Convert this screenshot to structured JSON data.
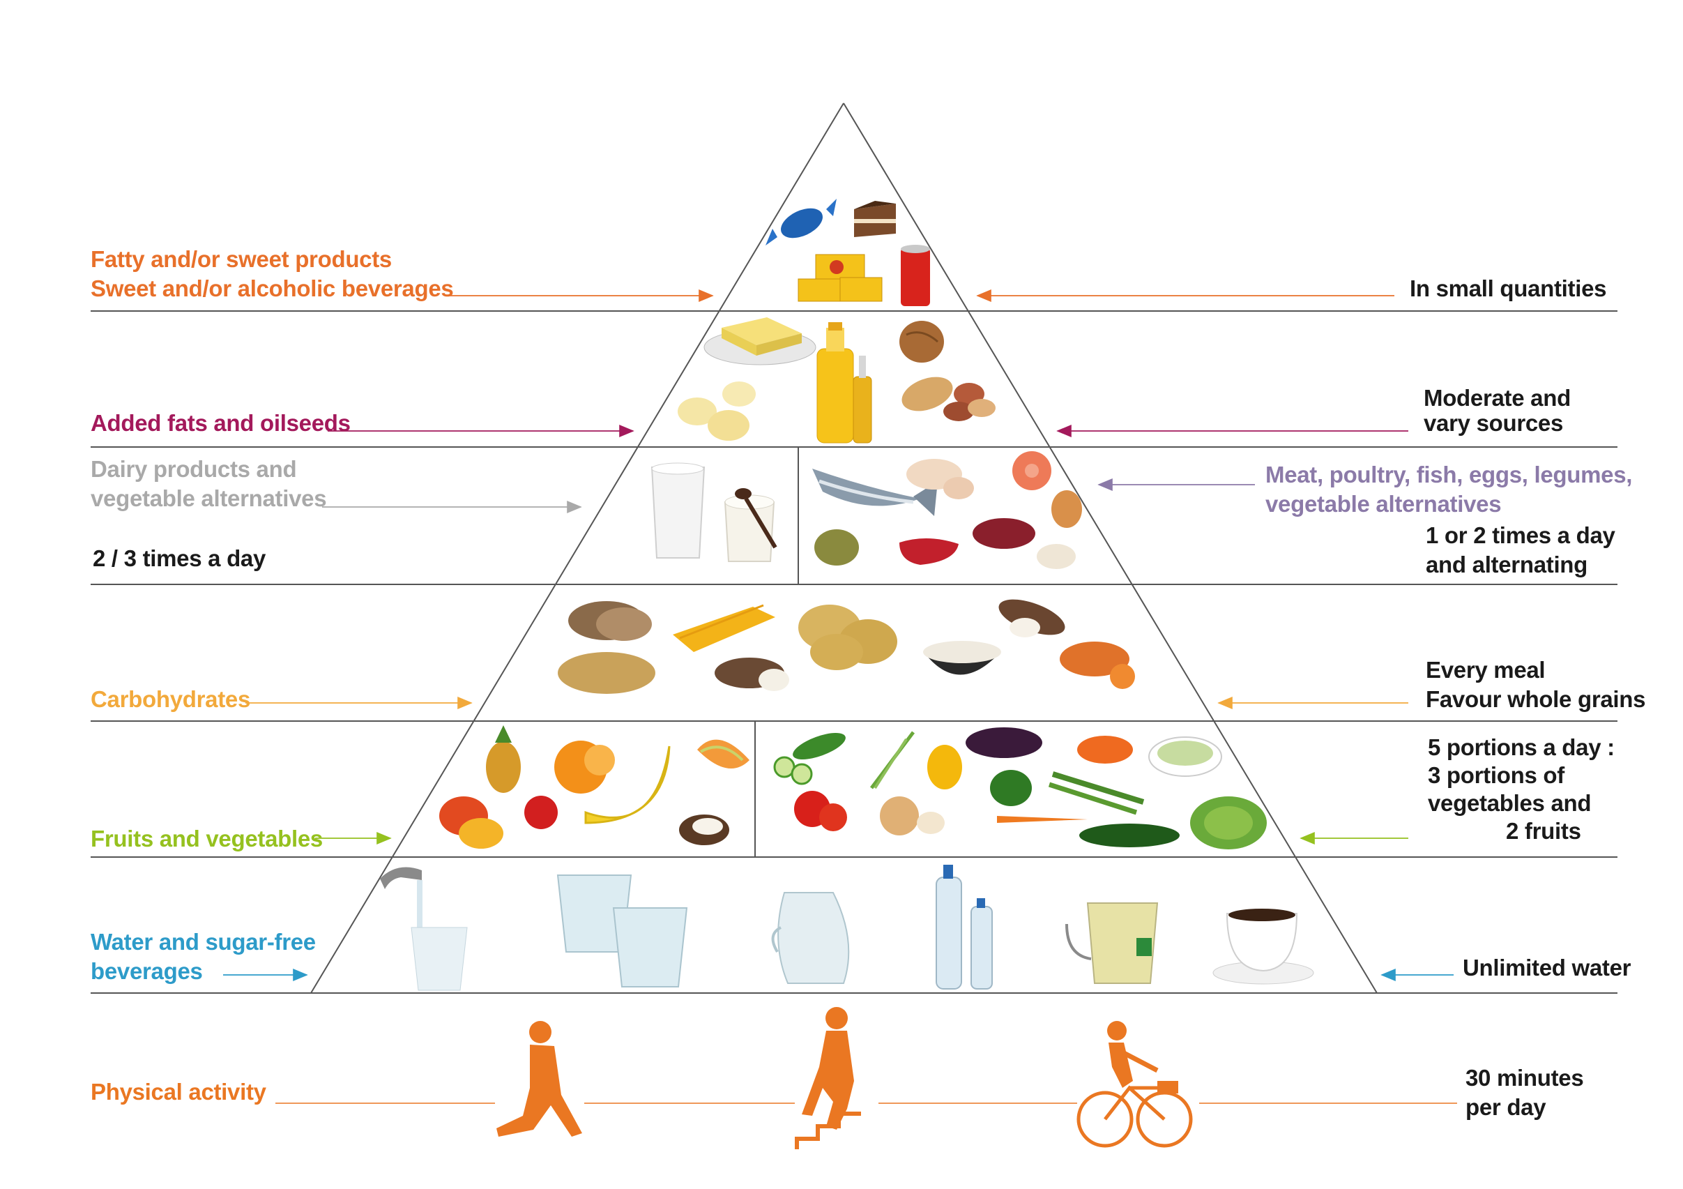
{
  "colors": {
    "orange": "#e8702a",
    "magenta": "#a3195b",
    "grey": "#a9a9a9",
    "purple": "#8b7aa8",
    "yellow": "#f2a93b",
    "green": "#95c11f",
    "blue": "#2d9bc9",
    "activity": "#ea7722",
    "line": "#555555"
  },
  "tiers": [
    {
      "left_lines": [
        "Fatty and/or sweet products",
        "Sweet and/or alcoholic beverages"
      ],
      "right_lines": [
        "In small quantities"
      ],
      "color": "#e8702a"
    },
    {
      "left_lines": [
        "Added fats and oilseeds"
      ],
      "right_lines": [
        "Moderate and",
        "vary sources"
      ],
      "color": "#a3195b"
    },
    {
      "left_lines": [
        "Dairy products and",
        "vegetable alternatives"
      ],
      "left_frequency": "2 / 3 times a day",
      "right_category_lines": [
        "Meat, poultry, fish, eggs, legumes,",
        "vegetable alternatives"
      ],
      "right_lines": [
        "1 or 2 times a day",
        "and alternating"
      ],
      "color": "#a9a9a9",
      "right_color": "#8b7aa8"
    },
    {
      "left_lines": [
        "Carbohydrates"
      ],
      "right_lines": [
        "Every meal",
        "Favour whole grains"
      ],
      "color": "#f2a93b"
    },
    {
      "left_lines": [
        "Fruits and vegetables"
      ],
      "right_lines": [
        "5 portions a day :",
        "3 portions of",
        "vegetables and",
        "2 fruits"
      ],
      "color": "#95c11f"
    },
    {
      "left_lines": [
        "Water and sugar-free",
        "beverages"
      ],
      "right_lines": [
        "Unlimited water"
      ],
      "color": "#2d9bc9"
    },
    {
      "left_lines": [
        "Physical activity"
      ],
      "right_lines": [
        "30 minutes",
        "per day"
      ],
      "color": "#ea7722"
    }
  ]
}
